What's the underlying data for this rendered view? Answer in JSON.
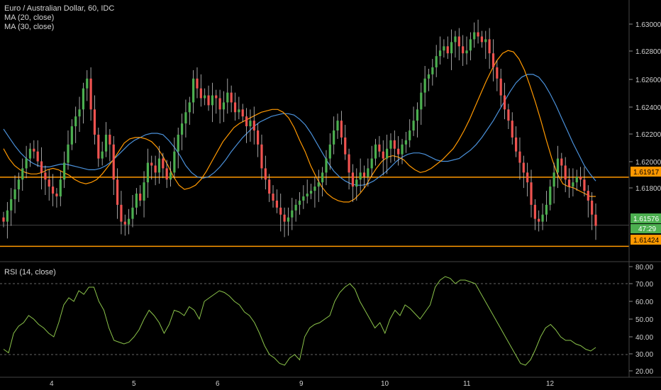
{
  "header": {
    "symbol_title": "Euro / Australian Dollar, 60, IDC",
    "ma20_label": "MA (20, close)",
    "ma30_label": "MA (30, close)",
    "rsi_label": "RSI (14, close)"
  },
  "colors": {
    "background": "#000000",
    "up_candle": "#4caf50",
    "down_candle": "#ef5350",
    "wick": "#c8c8c8",
    "ma20": "#ff9800",
    "ma30": "#4a90d9",
    "level_line": "#ff9800",
    "rsi_line": "#8bc34a",
    "last_price_tag": "#4caf50",
    "level_tag": "#ff9800"
  },
  "price_axis": {
    "ticks": [
      "1.63000",
      "1.62800",
      "1.62600",
      "1.62400",
      "1.62200",
      "1.62000",
      "1.61800",
      "1.61600",
      "1.61400"
    ],
    "last_price_label": "1.61576",
    "countdown_label": "47:29",
    "upper_level_label": "1.61917",
    "lower_level_label": "1.61424"
  },
  "rsi_axis": {
    "ticks": [
      "80.00",
      "70.00",
      "60.00",
      "50.00",
      "40.00",
      "30.00",
      "20.00"
    ]
  },
  "time_axis": {
    "labels": [
      "4",
      "5",
      "6",
      "9",
      "10",
      "11",
      "12"
    ]
  },
  "chart_data": {
    "type": "candlestick",
    "symbol": "Euro / Australian Dollar",
    "interval": "60",
    "source": "IDC",
    "price_range": [
      1.6133,
      1.6317
    ],
    "levels": [
      1.61917,
      1.61424
    ],
    "last_price": 1.61576,
    "day_labels": [
      {
        "label": "4",
        "index": 13
      },
      {
        "label": "5",
        "index": 36
      },
      {
        "label": "6",
        "index": 60
      },
      {
        "label": "9",
        "index": 84
      },
      {
        "label": "10",
        "index": 108
      },
      {
        "label": "11",
        "index": 131
      },
      {
        "label": "12",
        "index": 155
      }
    ],
    "close": [
      1.616,
      1.6168,
      1.6176,
      1.6183,
      1.619,
      1.6198,
      1.6205,
      1.6212,
      1.621,
      1.6203,
      1.6195,
      1.619,
      1.6185,
      1.618,
      1.6178,
      1.619,
      1.6202,
      1.6215,
      1.6228,
      1.6235,
      1.624,
      1.6255,
      1.6262,
      1.624,
      1.6222,
      1.6205,
      1.621,
      1.6222,
      1.6215,
      1.619,
      1.6172,
      1.616,
      1.6158,
      1.6162,
      1.617,
      1.618,
      1.6175,
      1.6188,
      1.6202,
      1.62,
      1.6195,
      1.6205,
      1.6198,
      1.619,
      1.6195,
      1.621,
      1.6222,
      1.623,
      1.6238,
      1.6245,
      1.6262,
      1.6255,
      1.6248,
      1.625,
      1.6243,
      1.625,
      1.6248,
      1.624,
      1.6245,
      1.6252,
      1.6245,
      1.6238,
      1.624,
      1.6235,
      1.6228,
      1.6232,
      1.6225,
      1.6215,
      1.6198,
      1.619,
      1.618,
      1.6175,
      1.617,
      1.6165,
      1.616,
      1.6163,
      1.6168,
      1.6172,
      1.6175,
      1.6178,
      1.618,
      1.6182,
      1.6185,
      1.6188,
      1.6195,
      1.6205,
      1.6215,
      1.6225,
      1.6232,
      1.622,
      1.6208,
      1.6195,
      1.6185,
      1.619,
      1.6195,
      1.6192,
      1.6198,
      1.6205,
      1.6215,
      1.621,
      1.6205,
      1.6212,
      1.6218,
      1.6212,
      1.6208,
      1.6215,
      1.6218,
      1.6225,
      1.6232,
      1.624,
      1.6252,
      1.6262,
      1.6265,
      1.627,
      1.6278,
      1.6282,
      1.6285,
      1.628,
      1.6288,
      1.6292,
      1.6285,
      1.628,
      1.6282,
      1.629,
      1.6295,
      1.6292,
      1.6288,
      1.629,
      1.628,
      1.627,
      1.6262,
      1.625,
      1.624,
      1.6232,
      1.622,
      1.621,
      1.6202,
      1.6195,
      1.6188,
      1.6172,
      1.6162,
      1.616,
      1.6165,
      1.6172,
      1.6185,
      1.6195,
      1.6205,
      1.62,
      1.619,
      1.6185,
      1.6188,
      1.6192,
      1.619,
      1.6182,
      1.6175,
      1.6165,
      1.6157
    ],
    "ma20": [
      1.6212,
      1.6205,
      1.62,
      1.6197,
      1.6195,
      1.6194,
      1.6194,
      1.6195,
      1.6197,
      1.6198,
      1.6197,
      1.6195,
      1.6193,
      1.619,
      1.6188,
      1.6187,
      1.6188,
      1.619,
      1.6194,
      1.6199,
      1.6204,
      1.621,
      1.6216,
      1.6219,
      1.622,
      1.622,
      1.6219,
      1.6217,
      1.6213,
      1.6207,
      1.62,
      1.6192,
      1.6186,
      1.6183,
      1.6184,
      1.6186,
      1.619,
      1.6196,
      1.6203,
      1.621,
      1.6217,
      1.6222,
      1.6227,
      1.623,
      1.6232,
      1.6234,
      1.6236,
      1.6238,
      1.6239,
      1.624,
      1.624,
      1.6238,
      1.6234,
      1.6227,
      1.6218,
      1.621,
      1.62,
      1.6192,
      1.6185,
      1.618,
      1.6177,
      1.6175,
      1.6174,
      1.6174,
      1.6176,
      1.618,
      1.6185,
      1.6192,
      1.6198,
      1.6203,
      1.6206,
      1.6207,
      1.6206,
      1.6204,
      1.62,
      1.6197,
      1.6195,
      1.6196,
      1.6198,
      1.6201,
      1.6204,
      1.6208,
      1.6212,
      1.6218,
      1.6225,
      1.6233,
      1.6242,
      1.6251,
      1.626,
      1.6268,
      1.6275,
      1.628,
      1.6282,
      1.6281,
      1.6276,
      1.6268,
      1.6257,
      1.6245,
      1.6232,
      1.6218,
      1.6205,
      1.6194,
      1.6187,
      1.6185,
      1.6184,
      1.6182,
      1.618,
      1.6178,
      1.6178
    ],
    "ma30": [
      1.6226,
      1.622,
      1.6214,
      1.6209,
      1.6205,
      1.6202,
      1.62,
      1.6199,
      1.6199,
      1.62,
      1.6201,
      1.6201,
      1.62,
      1.6199,
      1.6198,
      1.6197,
      1.6197,
      1.6198,
      1.62,
      1.6203,
      1.6207,
      1.6211,
      1.6215,
      1.6218,
      1.622,
      1.6222,
      1.6223,
      1.6223,
      1.6222,
      1.6218,
      1.6213,
      1.6207,
      1.62,
      1.6195,
      1.6192,
      1.6191,
      1.6192,
      1.6195,
      1.6199,
      1.6204,
      1.621,
      1.6215,
      1.622,
      1.6224,
      1.6228,
      1.6231,
      1.6233,
      1.6235,
      1.6236,
      1.6237,
      1.6237,
      1.6236,
      1.6233,
      1.6229,
      1.6223,
      1.6216,
      1.6209,
      1.6202,
      1.6196,
      1.6192,
      1.6189,
      1.6187,
      1.6186,
      1.6186,
      1.6187,
      1.6189,
      1.6192,
      1.6195,
      1.6199,
      1.6203,
      1.6206,
      1.6208,
      1.6209,
      1.6209,
      1.6208,
      1.6206,
      1.6204,
      1.6203,
      1.6203,
      1.6204,
      1.6205,
      1.6208,
      1.6211,
      1.6215,
      1.622,
      1.6226,
      1.6232,
      1.6239,
      1.6246,
      1.6253,
      1.6259,
      1.6263,
      1.6265,
      1.6265,
      1.6263,
      1.6258,
      1.6251,
      1.6243,
      1.6234,
      1.6225,
      1.6216,
      1.6208,
      1.62,
      1.6194,
      1.6189
    ],
    "rsi": [
      33,
      31,
      42,
      46,
      48,
      52,
      50,
      47,
      45,
      42,
      40,
      48,
      58,
      62,
      60,
      66,
      64,
      68,
      68,
      60,
      55,
      45,
      38,
      37,
      36,
      37,
      40,
      44,
      50,
      55,
      52,
      48,
      42,
      47,
      55,
      54,
      52,
      57,
      55,
      50,
      60,
      62,
      64,
      66,
      65,
      63,
      60,
      58,
      54,
      52,
      48,
      42,
      35,
      30,
      28,
      25,
      24,
      28,
      30,
      27,
      40,
      45,
      47,
      48,
      50,
      52,
      60,
      65,
      68,
      70,
      67,
      60,
      55,
      50,
      45,
      48,
      42,
      50,
      55,
      52,
      58,
      56,
      53,
      50,
      54,
      58,
      68,
      72,
      74,
      73,
      70,
      72,
      72,
      71,
      70,
      65,
      60,
      55,
      50,
      45,
      40,
      35,
      30,
      25,
      24,
      27,
      33,
      40,
      45,
      47,
      44,
      40,
      38,
      38,
      36,
      35,
      33,
      32,
      34
    ],
    "rsi_range": [
      18,
      82
    ],
    "rsi_levels": [
      70,
      30
    ]
  }
}
